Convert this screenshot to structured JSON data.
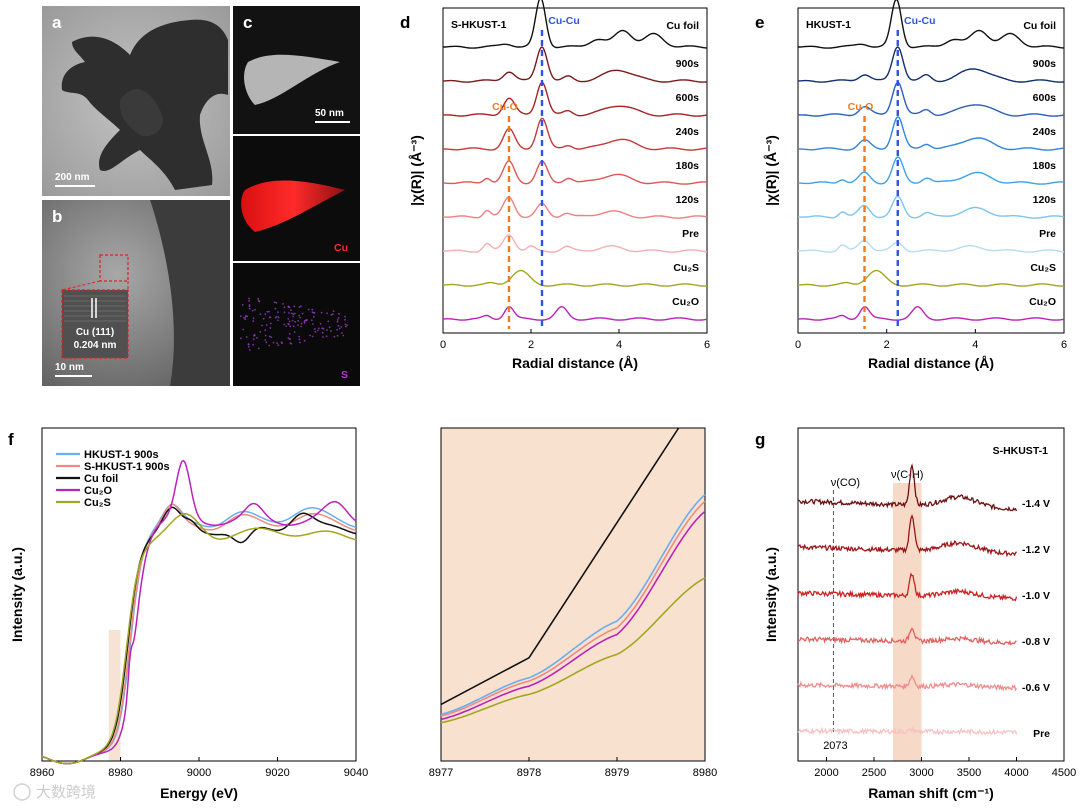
{
  "panels": {
    "a": {
      "letter": "a",
      "scale": "200 nm"
    },
    "b": {
      "letter": "b",
      "scale": "10 nm",
      "inset_title": "Cu (111)",
      "inset_value": "0.204 nm"
    },
    "c": {
      "letter": "c",
      "scale": "50 nm",
      "map_cu": "Cu",
      "map_s": "S"
    }
  },
  "chart_data": [
    {
      "id": "d",
      "type": "line",
      "panel": "d",
      "title": "S-HKUST-1",
      "xlabel": "Radial distance (Å)",
      "ylabel": "|χ(R)| (Å⁻³)",
      "xlim": [
        0,
        6
      ],
      "xticks": [
        "0",
        "2",
        "4",
        "6"
      ],
      "markers": [
        {
          "label": "Cu-O",
          "x": 1.5,
          "color": "#f07a1e"
        },
        {
          "label": "Cu-Cu",
          "x": 2.25,
          "color": "#2f55e0"
        }
      ],
      "series": [
        {
          "name": "Cu foil",
          "color": "#111111",
          "offset": 9,
          "peaks": [
            [
              2.22,
              1.75,
              0.16
            ],
            [
              1.45,
              0.12,
              0.2
            ],
            [
              3.5,
              0.28,
              0.25
            ],
            [
              4.1,
              0.6,
              0.28
            ],
            [
              4.8,
              0.45,
              0.3
            ]
          ]
        },
        {
          "name": "900s",
          "color": "#7a1a1a",
          "offset": 8,
          "peaks": [
            [
              1.5,
              0.35,
              0.18
            ],
            [
              2.25,
              1.25,
              0.17
            ],
            [
              2.85,
              0.15,
              0.15
            ],
            [
              4.0,
              0.4,
              0.45
            ]
          ]
        },
        {
          "name": "600s",
          "color": "#a82222",
          "offset": 7,
          "peaks": [
            [
              1.5,
              0.6,
              0.18
            ],
            [
              2.25,
              1.2,
              0.17
            ],
            [
              2.85,
              0.15,
              0.15
            ],
            [
              4.0,
              0.35,
              0.45
            ]
          ]
        },
        {
          "name": "240s",
          "color": "#c83838",
          "offset": 6,
          "peaks": [
            [
              1.5,
              0.7,
              0.18
            ],
            [
              2.25,
              1.1,
              0.17
            ],
            [
              2.85,
              0.15,
              0.15
            ],
            [
              4.0,
              0.35,
              0.45
            ]
          ]
        },
        {
          "name": "180s",
          "color": "#e05656",
          "offset": 5,
          "peaks": [
            [
              1.0,
              0.2,
              0.12
            ],
            [
              1.5,
              0.75,
              0.18
            ],
            [
              2.25,
              0.75,
              0.17
            ],
            [
              2.85,
              0.2,
              0.15
            ],
            [
              3.9,
              0.3,
              0.45
            ]
          ]
        },
        {
          "name": "120s",
          "color": "#f07f7f",
          "offset": 4,
          "peaks": [
            [
              1.0,
              0.25,
              0.12
            ],
            [
              1.5,
              0.7,
              0.18
            ],
            [
              2.25,
              0.45,
              0.17
            ],
            [
              2.8,
              0.15,
              0.15
            ],
            [
              3.8,
              0.2,
              0.4
            ]
          ]
        },
        {
          "name": "Pre",
          "color": "#f5aeb4",
          "offset": 3,
          "peaks": [
            [
              1.0,
              0.25,
              0.12
            ],
            [
              1.5,
              0.6,
              0.18
            ],
            [
              2.0,
              0.15,
              0.12
            ],
            [
              2.8,
              0.15,
              0.15
            ],
            [
              3.8,
              0.15,
              0.4
            ]
          ]
        },
        {
          "name": "Cu2S",
          "color": "#a0a820",
          "offset": 2,
          "peaks": [
            [
              1.75,
              0.5,
              0.28
            ],
            [
              1.1,
              0.05,
              0.15
            ]
          ]
        },
        {
          "name": "Cu2O",
          "color": "#bb22bb",
          "offset": 1,
          "peaks": [
            [
              1.5,
              0.45,
              0.15
            ],
            [
              2.7,
              0.4,
              0.18
            ],
            [
              1.0,
              0.1,
              0.12
            ]
          ]
        }
      ],
      "series_labels": [
        "Cu foil",
        "900s",
        "600s",
        "240s",
        "180s",
        "120s",
        "Pre",
        "Cu₂S",
        "Cu₂O"
      ]
    },
    {
      "id": "e",
      "type": "line",
      "panel": "e",
      "title": "HKUST-1",
      "xlabel": "Radial distance (Å)",
      "ylabel": "|χ(R)| (Å⁻³)",
      "xlim": [
        0,
        6
      ],
      "xticks": [
        "0",
        "2",
        "4",
        "6"
      ],
      "markers": [
        {
          "label": "Cu-O",
          "x": 1.5,
          "color": "#f07a1e"
        },
        {
          "label": "Cu-Cu",
          "x": 2.25,
          "color": "#2f55e0"
        }
      ],
      "series": [
        {
          "name": "Cu foil",
          "color": "#111111",
          "offset": 9,
          "peaks": [
            [
              2.22,
              1.7,
              0.16
            ],
            [
              1.45,
              0.12,
              0.2
            ],
            [
              3.5,
              0.28,
              0.25
            ],
            [
              4.1,
              0.6,
              0.28
            ],
            [
              4.8,
              0.45,
              0.3
            ]
          ]
        },
        {
          "name": "900s",
          "color": "#10306e",
          "offset": 8,
          "peaks": [
            [
              1.5,
              0.25,
              0.18
            ],
            [
              2.25,
              1.25,
              0.17
            ],
            [
              2.9,
              0.2,
              0.15
            ],
            [
              4.0,
              0.45,
              0.45
            ]
          ]
        },
        {
          "name": "600s",
          "color": "#2a5fc0",
          "offset": 7,
          "peaks": [
            [
              1.5,
              0.3,
              0.18
            ],
            [
              2.25,
              1.2,
              0.17
            ],
            [
              2.9,
              0.2,
              0.15
            ],
            [
              4.0,
              0.4,
              0.45
            ]
          ]
        },
        {
          "name": "240s",
          "color": "#2f86dc",
          "offset": 6,
          "peaks": [
            [
              1.5,
              0.3,
              0.18
            ],
            [
              2.25,
              1.15,
              0.17
            ],
            [
              2.9,
              0.2,
              0.15
            ],
            [
              4.0,
              0.4,
              0.45
            ]
          ]
        },
        {
          "name": "180s",
          "color": "#3ea2e8",
          "offset": 5,
          "peaks": [
            [
              1.0,
              0.15,
              0.12
            ],
            [
              1.5,
              0.35,
              0.18
            ],
            [
              2.25,
              0.9,
              0.17
            ],
            [
              2.9,
              0.2,
              0.15
            ],
            [
              4.0,
              0.35,
              0.45
            ]
          ]
        },
        {
          "name": "120s",
          "color": "#7cc4ee",
          "offset": 4,
          "peaks": [
            [
              1.0,
              0.2,
              0.12
            ],
            [
              1.5,
              0.4,
              0.18
            ],
            [
              2.25,
              0.7,
              0.17
            ],
            [
              2.9,
              0.15,
              0.15
            ],
            [
              4.0,
              0.3,
              0.45
            ]
          ]
        },
        {
          "name": "Pre",
          "color": "#b6dcf2",
          "offset": 3,
          "peaks": [
            [
              1.0,
              0.2,
              0.12
            ],
            [
              1.5,
              0.4,
              0.18
            ],
            [
              2.25,
              0.3,
              0.17
            ],
            [
              3.9,
              0.15,
              0.45
            ]
          ]
        },
        {
          "name": "Cu2S",
          "color": "#a0a820",
          "offset": 2,
          "peaks": [
            [
              1.75,
              0.5,
              0.28
            ],
            [
              1.1,
              0.05,
              0.15
            ]
          ]
        },
        {
          "name": "Cu2O",
          "color": "#bb22bb",
          "offset": 1,
          "peaks": [
            [
              1.5,
              0.45,
              0.15
            ],
            [
              2.7,
              0.4,
              0.18
            ],
            [
              1.0,
              0.1,
              0.12
            ]
          ]
        }
      ],
      "series_labels": [
        "Cu foil",
        "900s",
        "600s",
        "240s",
        "180s",
        "120s",
        "Pre",
        "Cu₂S",
        "Cu₂O"
      ]
    },
    {
      "id": "f",
      "type": "line",
      "panel": "f",
      "xlabel": "Energy (eV)",
      "ylabel": "Intensity (a.u.)",
      "xlim": [
        8960,
        9040
      ],
      "xticks": [
        "8960",
        "8980",
        "9000",
        "9020",
        "9040"
      ],
      "highlight_band": [
        8977,
        8980
      ],
      "legend": [
        "HKUST-1 900s",
        "S-HKUST-1 900s",
        "Cu foil",
        "Cu₂O",
        "Cu₂S"
      ],
      "series": [
        {
          "name": "HKUST-1 900s",
          "color": "#6aaeee"
        },
        {
          "name": "S-HKUST-1 900s",
          "color": "#f08a80"
        },
        {
          "name": "Cu foil",
          "color": "#111111"
        },
        {
          "name": "Cu2O",
          "color": "#bb22bb"
        },
        {
          "name": "Cu2S",
          "color": "#a0a820"
        }
      ]
    },
    {
      "id": "f-zoom",
      "type": "line",
      "panel": "f-zoom",
      "xlim": [
        8977,
        8980
      ],
      "xticks": [
        "8977",
        "8978",
        "8979",
        "8980"
      ],
      "series": [
        {
          "name": "Cu foil",
          "color": "#111111",
          "x": [
            8977,
            8978,
            8979.7
          ],
          "y": [
            0.17,
            0.31,
            1.0
          ]
        },
        {
          "name": "HKUST-1 900s",
          "color": "#6aaeee",
          "x": [
            8977,
            8978,
            8979,
            8980
          ],
          "y": [
            0.14,
            0.25,
            0.42,
            0.8
          ]
        },
        {
          "name": "S-HKUST-1 900s",
          "color": "#f08a80",
          "x": [
            8977,
            8978,
            8979,
            8980
          ],
          "y": [
            0.135,
            0.24,
            0.4,
            0.78
          ]
        },
        {
          "name": "Cu2O",
          "color": "#bb22bb",
          "x": [
            8977,
            8978,
            8979,
            8980
          ],
          "y": [
            0.125,
            0.225,
            0.38,
            0.75
          ]
        },
        {
          "name": "Cu2S",
          "color": "#a0a820",
          "x": [
            8977,
            8978,
            8979,
            8980
          ],
          "y": [
            0.115,
            0.2,
            0.32,
            0.55
          ]
        }
      ]
    },
    {
      "id": "g",
      "type": "line",
      "panel": "g",
      "title": "S-HKUST-1",
      "xlabel": "Raman shift (cm⁻¹)",
      "ylabel": "Intensity (a.u.)",
      "xlim": [
        1700,
        4500
      ],
      "xticks": [
        "2000",
        "2500",
        "3000",
        "3500",
        "4000",
        "4500"
      ],
      "vline": {
        "x": 2073,
        "label": "2073",
        "top_label": "ν(CO)"
      },
      "band": {
        "range": [
          2700,
          3000
        ],
        "label": "ν(C-H)"
      },
      "series": [
        {
          "name": "-1.4 V",
          "color": "#6e1010",
          "offset": 6,
          "ch": 1.0
        },
        {
          "name": "-1.2 V",
          "color": "#9c1818",
          "offset": 5,
          "ch": 0.9
        },
        {
          "name": "-1.0 V",
          "color": "#cc2222",
          "offset": 4,
          "ch": 0.55
        },
        {
          "name": "-0.8 V",
          "color": "#e46060",
          "offset": 3,
          "ch": 0.35
        },
        {
          "name": "-0.6 V",
          "color": "#f08c8c",
          "offset": 2,
          "ch": 0.25
        },
        {
          "name": "Pre",
          "color": "#f7c2c2",
          "offset": 1,
          "ch": 0.05
        }
      ]
    }
  ],
  "watermark": "大数跨境"
}
